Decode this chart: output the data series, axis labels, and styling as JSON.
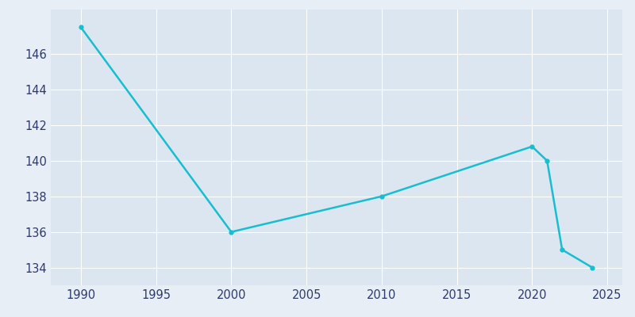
{
  "years": [
    1990,
    2000,
    2010,
    2020,
    2021,
    2022,
    2024
  ],
  "population": [
    147.5,
    136.0,
    138.0,
    140.8,
    140.0,
    135.0,
    134.0
  ],
  "line_color": "#17becf",
  "marker_color": "#17becf",
  "bg_color": "#e8eef5",
  "plot_bg_color": "#dce6f0",
  "grid_color": "#ffffff",
  "tick_label_color": "#2d3a6b",
  "xlim": [
    1988,
    2026
  ],
  "ylim": [
    133,
    148.5
  ],
  "xticks": [
    1990,
    1995,
    2000,
    2005,
    2010,
    2015,
    2020,
    2025
  ],
  "yticks": [
    134,
    136,
    138,
    140,
    142,
    144,
    146
  ]
}
